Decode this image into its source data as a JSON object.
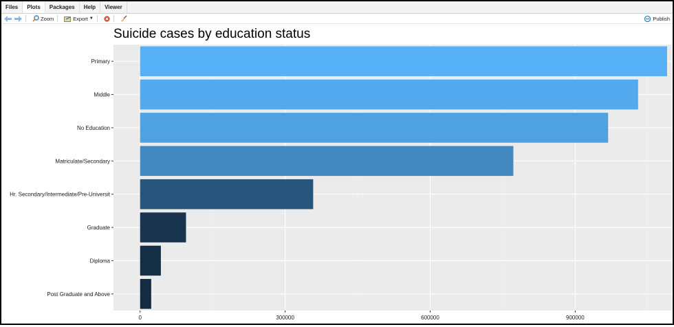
{
  "tabs": [
    {
      "label": "Files",
      "active": false
    },
    {
      "label": "Plots",
      "active": true
    },
    {
      "label": "Packages",
      "active": false
    },
    {
      "label": "Help",
      "active": false
    },
    {
      "label": "Viewer",
      "active": false
    }
  ],
  "toolbar": {
    "zoom_label": "Zoom",
    "export_label": "Export",
    "publish_label": "Publish"
  },
  "colors": {
    "panel_bg": "#ebebeb",
    "grid_major": "#ffffff",
    "bar_light": "#56b1f7",
    "bar_dark": "#132b43",
    "publish_accent": "#1a8fd6"
  },
  "chart_data": {
    "type": "bar",
    "orientation": "horizontal",
    "title": "Suicide cases by education status",
    "xlabel": "",
    "ylabel": "",
    "categories": [
      "Primary",
      "Middle",
      "No Education",
      "Matriculate/Secondary",
      "Hr. Secondary/Intermediate/Pre-Universit",
      "Graduate",
      "Diploma",
      "Post Graduate and Above"
    ],
    "values": [
      1090000,
      1030000,
      968000,
      772000,
      358000,
      95000,
      43000,
      23000
    ],
    "xlim": [
      -55000,
      1100000
    ],
    "xticks": [
      0,
      300000,
      600000,
      900000
    ],
    "xtick_labels": [
      "0",
      "300000",
      "600000",
      "900000"
    ],
    "grid": true,
    "legend": "none"
  }
}
